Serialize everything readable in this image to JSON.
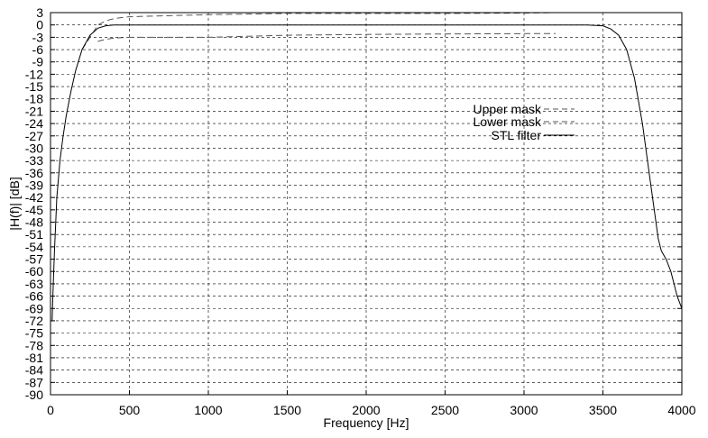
{
  "chart_data": {
    "type": "line",
    "title": "",
    "xlabel": "Frequency [Hz]",
    "ylabel": "|H(f)| [dB]",
    "xlim": [
      0,
      4000
    ],
    "ylim": [
      -90,
      3
    ],
    "x_ticks": [
      0,
      500,
      1000,
      1500,
      2000,
      2500,
      3000,
      3500,
      4000
    ],
    "y_ticks": [
      3,
      0,
      -3,
      -6,
      -9,
      -12,
      -15,
      -18,
      -21,
      -24,
      -27,
      -30,
      -33,
      -36,
      -39,
      -42,
      -45,
      -48,
      -51,
      -54,
      -57,
      -60,
      -63,
      -66,
      -69,
      -72,
      -75,
      -78,
      -81,
      -84,
      -87,
      -90
    ],
    "grid": true,
    "legend_position": "center-right",
    "series": [
      {
        "name": "Upper mask",
        "style": "dashed",
        "color": "#555555",
        "x": [
          200,
          250,
          300,
          350,
          400,
          450,
          500,
          700,
          1000,
          1500,
          2000,
          2500,
          3000,
          3200
        ],
        "y": [
          -6,
          -3,
          0,
          1,
          1.5,
          1.8,
          2,
          2.2,
          2.5,
          2.8,
          2.8,
          2.8,
          2.9,
          3
        ]
      },
      {
        "name": "Lower mask",
        "style": "dashed",
        "color": "#555555",
        "x": [
          300,
          350,
          400,
          450,
          500,
          700,
          1000,
          1500,
          2000,
          2500,
          3000,
          3200
        ],
        "y": [
          -4,
          -3.5,
          -3.2,
          -3.1,
          -3,
          -3,
          -3,
          -2.5,
          -2.3,
          -2.2,
          -2.1,
          -2.1
        ]
      },
      {
        "name": "STL filter",
        "style": "solid",
        "color": "#000000",
        "x": [
          10,
          15,
          25,
          40,
          60,
          80,
          100,
          130,
          160,
          200,
          250,
          300,
          350,
          400,
          450,
          500,
          1000,
          1500,
          2000,
          2500,
          3000,
          3400,
          3500,
          3550,
          3600,
          3650,
          3700,
          3750,
          3800,
          3850,
          3870,
          3900,
          3930,
          3950,
          3970,
          4000
        ],
        "y": [
          -72,
          -66,
          -55,
          -42,
          -33,
          -27,
          -22,
          -16,
          -11,
          -6,
          -2.5,
          -0.8,
          -0.2,
          0,
          0,
          0,
          0,
          0,
          0,
          0,
          0,
          0,
          -0.2,
          -1,
          -2.5,
          -6,
          -13,
          -24,
          -38,
          -52,
          -55,
          -57,
          -60,
          -63,
          -66,
          -69
        ]
      }
    ]
  },
  "legend": {
    "upper": "Upper mask",
    "lower": "Lower mask",
    "stl": "STL filter"
  }
}
